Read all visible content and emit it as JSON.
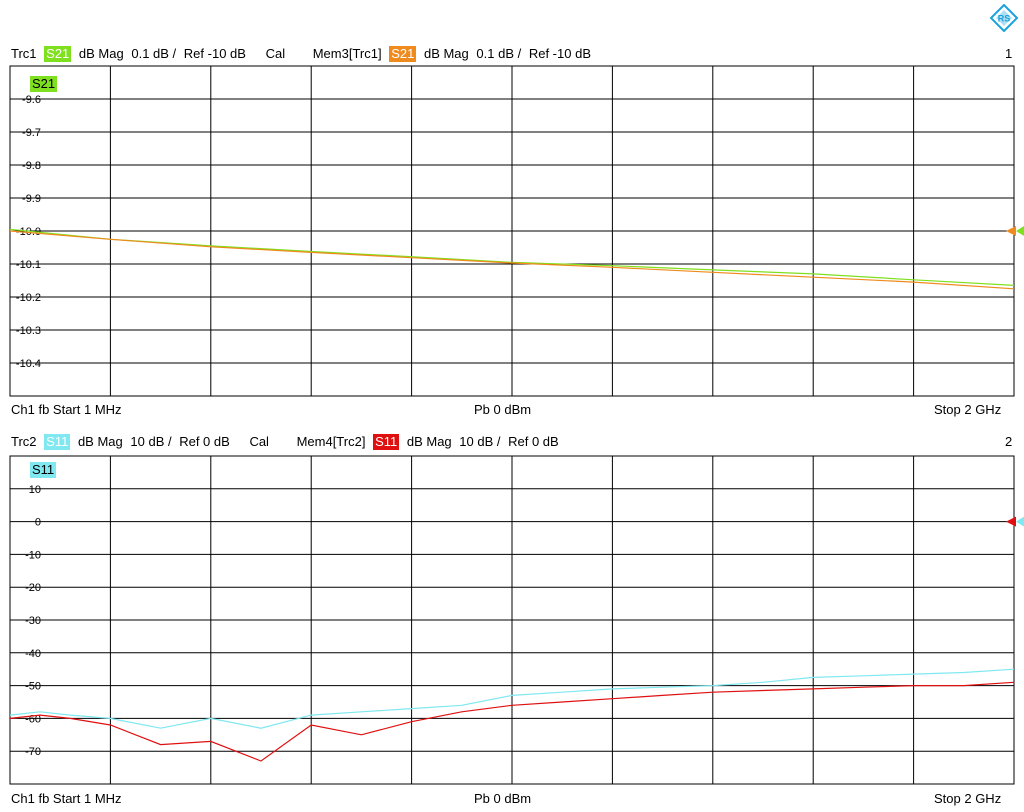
{
  "logo": {
    "name": "rohde-schwarz-logo-icon",
    "color": "#19a2dc"
  },
  "diagrams": [
    {
      "header": {
        "trace": "Trc1",
        "param": "S21",
        "param_color": "#7fe020",
        "format": "dB Mag",
        "scale": "0.1 dB /",
        "ref": "Ref -10 dB",
        "cal": "Cal",
        "mem": "Mem3[Trc1]",
        "mem_param": "S21",
        "mem_color": "#ef8a1c",
        "mem_format": "dB Mag",
        "mem_scale": "0.1 dB /",
        "mem_ref": "Ref -10 dB",
        "index": "1"
      },
      "trace_tag": "S21",
      "footer": {
        "left": "Ch1  fb  Start  1 MHz",
        "center": "Pb   0 dBm",
        "right": "Stop  2 GHz"
      }
    },
    {
      "header": {
        "trace": "Trc2",
        "param": "S11",
        "param_color": "#7fe8f0",
        "format": "dB Mag",
        "scale": "10 dB /",
        "ref": "Ref 0 dB",
        "cal": "Cal",
        "mem": "Mem4[Trc2]",
        "mem_param": "S11",
        "mem_color": "#e01010",
        "mem_format": "dB Mag",
        "mem_scale": "10 dB /",
        "mem_ref": "Ref 0 dB",
        "index": "2"
      },
      "trace_tag": "S11",
      "footer": {
        "left": "Ch1  fb  Start  1 MHz",
        "center": "Pb   0 dBm",
        "right": "Stop  2 GHz"
      }
    }
  ],
  "chart_data": [
    {
      "type": "line",
      "xlabel": "",
      "ylabel": "",
      "x_range_hz": [
        1000000,
        2000000000
      ],
      "x_divisions": 10,
      "y_divisions": 10,
      "ylim": [
        -10.5,
        -9.5
      ],
      "ref_level": -10.0,
      "y_ticks": [
        "-9.6",
        "-9.7",
        "-9.8",
        "-9.9",
        "-10.0",
        "-10.1",
        "-10.2",
        "-10.3",
        "-10.4"
      ],
      "y_tick_values": [
        -9.6,
        -9.7,
        -9.8,
        -9.9,
        -10.0,
        -10.1,
        -10.2,
        -10.3,
        -10.4
      ],
      "grid": true,
      "series": [
        {
          "name": "S21",
          "color": "#7fe020",
          "x": [
            0,
            0.1,
            0.2,
            0.3,
            0.4,
            0.5,
            0.6,
            0.7,
            0.8,
            0.9,
            1.0
          ],
          "y": [
            -9.995,
            -10.025,
            -10.045,
            -10.062,
            -10.078,
            -10.095,
            -10.105,
            -10.118,
            -10.13,
            -10.148,
            -10.165
          ]
        },
        {
          "name": "S21",
          "color": "#ef8a1c",
          "x": [
            0,
            0.1,
            0.2,
            0.3,
            0.4,
            0.5,
            0.6,
            0.7,
            0.8,
            0.9,
            1.0
          ],
          "y": [
            -10.0,
            -10.025,
            -10.048,
            -10.065,
            -10.081,
            -10.097,
            -10.11,
            -10.125,
            -10.14,
            -10.155,
            -10.175
          ]
        }
      ]
    },
    {
      "type": "line",
      "xlabel": "",
      "ylabel": "",
      "x_range_hz": [
        1000000,
        2000000000
      ],
      "x_divisions": 10,
      "y_divisions": 10,
      "ylim": [
        -80,
        20
      ],
      "ref_level": 0,
      "y_ticks": [
        "10",
        "0",
        "-10",
        "-20",
        "-30",
        "-40",
        "-50",
        "-60",
        "-70"
      ],
      "y_tick_values": [
        10,
        0,
        -10,
        -20,
        -30,
        -40,
        -50,
        -60,
        -70
      ],
      "grid": true,
      "series": [
        {
          "name": "S11",
          "color": "#7fe8f0",
          "x": [
            0,
            0.03,
            0.06,
            0.1,
            0.15,
            0.2,
            0.25,
            0.3,
            0.35,
            0.4,
            0.45,
            0.5,
            0.55,
            0.6,
            0.65,
            0.7,
            0.75,
            0.8,
            0.85,
            0.9,
            0.95,
            1.0
          ],
          "y": [
            -59,
            -58,
            -59,
            -60,
            -63,
            -60,
            -63,
            -59,
            -58,
            -57,
            -56,
            -53,
            -52,
            -51,
            -50.5,
            -50,
            -49,
            -47.5,
            -47,
            -46.5,
            -46,
            -45
          ]
        },
        {
          "name": "S11",
          "color": "#e01010",
          "x": [
            0,
            0.03,
            0.06,
            0.1,
            0.15,
            0.2,
            0.25,
            0.3,
            0.35,
            0.4,
            0.45,
            0.5,
            0.55,
            0.6,
            0.65,
            0.7,
            0.75,
            0.8,
            0.85,
            0.9,
            0.95,
            1.0
          ],
          "y": [
            -60,
            -59,
            -60,
            -62,
            -68,
            -67,
            -73,
            -62,
            -65,
            -61,
            -58,
            -56,
            -55,
            -54,
            -53,
            -52,
            -51.5,
            -51,
            -50.5,
            -50,
            -50,
            -49
          ]
        }
      ]
    }
  ]
}
